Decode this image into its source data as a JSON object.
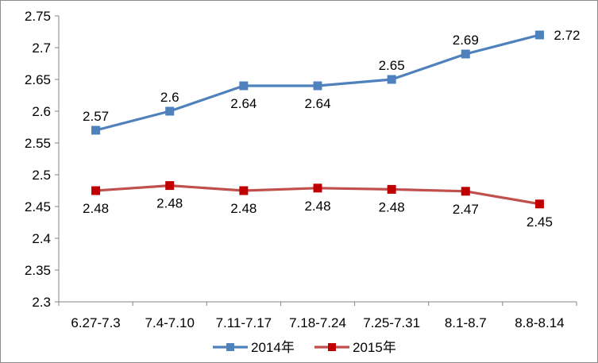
{
  "chart_data": {
    "type": "line",
    "categories": [
      "6.27-7.3",
      "7.4-7.10",
      "7.11-7.17",
      "7.18-7.24",
      "7.25-7.31",
      "8.1-8.7",
      "8.8-8.14"
    ],
    "series": [
      {
        "name": "2014年",
        "color": "#4f81bd",
        "marker_color": "#4f81bd",
        "values": [
          2.57,
          2.6,
          2.64,
          2.64,
          2.65,
          2.69,
          2.72
        ],
        "labels": [
          "2.57",
          "2.6",
          "2.64",
          "2.64",
          "2.65",
          "2.69",
          "2.72"
        ],
        "label_positions": [
          "above",
          "above",
          "below",
          "below",
          "above",
          "above",
          "right"
        ]
      },
      {
        "name": "2015年",
        "color": "#c0504d",
        "marker_color": "#c00000",
        "values": [
          2.475,
          2.483,
          2.475,
          2.479,
          2.477,
          2.474,
          2.454
        ],
        "labels": [
          "2.48",
          "2.48",
          "2.48",
          "2.48",
          "2.48",
          "2.47",
          "2.45"
        ],
        "label_positions": [
          "below",
          "below",
          "below",
          "below",
          "below",
          "below",
          "below"
        ]
      }
    ],
    "y_ticks": [
      "2.3",
      "2.35",
      "2.4",
      "2.45",
      "2.5",
      "2.55",
      "2.6",
      "2.65",
      "2.7",
      "2.75"
    ],
    "ylim": [
      2.3,
      2.75
    ],
    "title": "",
    "xlabel": "",
    "ylabel": "",
    "grid": false,
    "legend_position": "bottom"
  }
}
